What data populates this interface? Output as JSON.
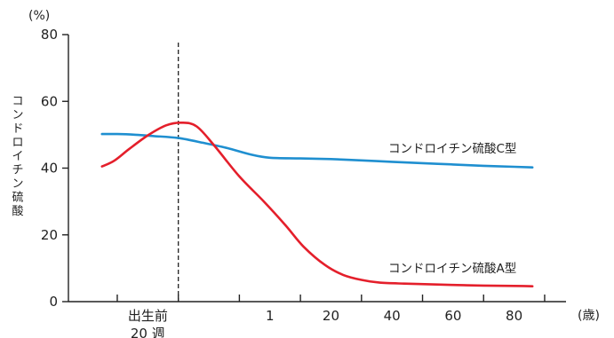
{
  "chart_data": {
    "type": "line",
    "ylabel": "コンドロイチン硫酸",
    "y_unit": "(%)",
    "x_unit": "(歳)",
    "ylim": [
      0,
      80
    ],
    "y_ticks": [
      "0",
      "20",
      "40",
      "60",
      "80"
    ],
    "x_categories": [
      {
        "label": "出生前\n20 週",
        "pos": 1
      },
      {
        "label": "",
        "pos": 2
      },
      {
        "label": "1",
        "pos": 3
      },
      {
        "label": "20",
        "pos": 4
      },
      {
        "label": "40",
        "pos": 5
      },
      {
        "label": "60",
        "pos": 6
      },
      {
        "label": "80",
        "pos": 7
      }
    ],
    "x_tick_marks": [
      0.5,
      1.5,
      2.5,
      3.5,
      4.5,
      5.5,
      6.5,
      7.5
    ],
    "x_range": [
      -0.3,
      7.85
    ],
    "birth_line_x": 1.5,
    "series": [
      {
        "name": "コンドロイチン硫酸C型",
        "color": "#1f8fd0",
        "points": [
          [
            0.25,
            50.2
          ],
          [
            0.5,
            50.2
          ],
          [
            0.8,
            50.0
          ],
          [
            1.1,
            49.6
          ],
          [
            1.5,
            49.0
          ],
          [
            1.9,
            47.6
          ],
          [
            2.3,
            46.0
          ],
          [
            2.7,
            44.0
          ],
          [
            3.0,
            43.1
          ],
          [
            3.5,
            42.9
          ],
          [
            4.0,
            42.7
          ],
          [
            4.5,
            42.3
          ],
          [
            5.0,
            41.9
          ],
          [
            5.5,
            41.5
          ],
          [
            6.0,
            41.1
          ],
          [
            6.5,
            40.7
          ],
          [
            7.0,
            40.4
          ],
          [
            7.3,
            40.2
          ]
        ]
      },
      {
        "name": "コンドロイチン硫酸A型",
        "color": "#e41f2b",
        "points": [
          [
            0.25,
            40.5
          ],
          [
            0.45,
            42.2
          ],
          [
            0.7,
            45.8
          ],
          [
            1.0,
            49.8
          ],
          [
            1.3,
            52.8
          ],
          [
            1.55,
            53.6
          ],
          [
            1.8,
            52.5
          ],
          [
            2.1,
            46.5
          ],
          [
            2.5,
            37.5
          ],
          [
            2.9,
            30.0
          ],
          [
            3.25,
            23.0
          ],
          [
            3.55,
            16.5
          ],
          [
            3.9,
            11.0
          ],
          [
            4.2,
            8.0
          ],
          [
            4.5,
            6.5
          ],
          [
            4.8,
            5.7
          ],
          [
            5.2,
            5.4
          ],
          [
            5.6,
            5.2
          ],
          [
            6.0,
            5.0
          ],
          [
            6.5,
            4.8
          ],
          [
            7.0,
            4.7
          ],
          [
            7.3,
            4.6
          ]
        ]
      }
    ]
  }
}
